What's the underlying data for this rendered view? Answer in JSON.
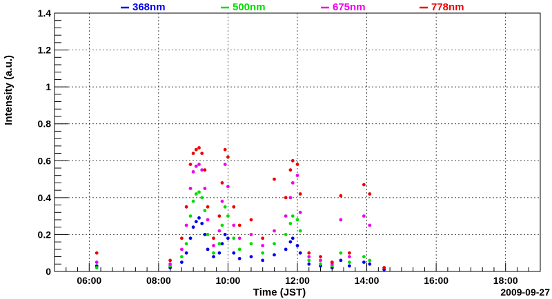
{
  "chart_data": {
    "type": "scatter",
    "title": "",
    "xlabel": "Time (JST)",
    "ylabel": "Intensity (a.u.)",
    "date_label": "2009-09-27",
    "xlim": [
      "05:00",
      "19:00"
    ],
    "ylim": [
      0,
      1.4
    ],
    "x_ticks": [
      "06:00",
      "08:00",
      "10:00",
      "12:00",
      "14:00",
      "16:00",
      "18:00"
    ],
    "y_ticks": [
      "0",
      "0.2",
      "0.4",
      "0.6",
      "0.8",
      "1",
      "1.2",
      "1.4"
    ],
    "grid": true,
    "legend_position": "top",
    "series": [
      {
        "name": "368nm",
        "color": "#0000ee",
        "points": [
          [
            "06:13",
            0.03
          ],
          [
            "08:20",
            0.02
          ],
          [
            "08:40",
            0.05
          ],
          [
            "08:48",
            0.1
          ],
          [
            "08:55",
            0.18
          ],
          [
            "09:00",
            0.24
          ],
          [
            "09:05",
            0.27
          ],
          [
            "09:10",
            0.29
          ],
          [
            "09:15",
            0.26
          ],
          [
            "09:20",
            0.2
          ],
          [
            "09:25",
            0.12
          ],
          [
            "09:35",
            0.08
          ],
          [
            "09:45",
            0.1
          ],
          [
            "09:50",
            0.15
          ],
          [
            "09:55",
            0.2
          ],
          [
            "10:00",
            0.18
          ],
          [
            "10:10",
            0.1
          ],
          [
            "10:20",
            0.07
          ],
          [
            "10:40",
            0.08
          ],
          [
            "11:00",
            0.06
          ],
          [
            "11:20",
            0.09
          ],
          [
            "11:40",
            0.12
          ],
          [
            "11:48",
            0.16
          ],
          [
            "11:52",
            0.18
          ],
          [
            "12:00",
            0.14
          ],
          [
            "12:05",
            0.1
          ],
          [
            "12:20",
            0.04
          ],
          [
            "12:40",
            0.03
          ],
          [
            "13:00",
            0.02
          ],
          [
            "13:15",
            0.06
          ],
          [
            "13:30",
            0.03
          ],
          [
            "13:55",
            0.05
          ],
          [
            "14:05",
            0.04
          ],
          [
            "14:30",
            0.01
          ]
        ]
      },
      {
        "name": "500nm",
        "color": "#00dd00",
        "points": [
          [
            "06:13",
            0.02
          ],
          [
            "08:20",
            0.03
          ],
          [
            "08:40",
            0.08
          ],
          [
            "08:48",
            0.15
          ],
          [
            "08:55",
            0.3
          ],
          [
            "09:00",
            0.38
          ],
          [
            "09:05",
            0.42
          ],
          [
            "09:10",
            0.43
          ],
          [
            "09:15",
            0.4
          ],
          [
            "09:20",
            0.33
          ],
          [
            "09:25",
            0.2
          ],
          [
            "09:35",
            0.1
          ],
          [
            "09:45",
            0.15
          ],
          [
            "09:50",
            0.25
          ],
          [
            "09:55",
            0.35
          ],
          [
            "10:00",
            0.3
          ],
          [
            "10:10",
            0.18
          ],
          [
            "10:20",
            0.12
          ],
          [
            "10:40",
            0.15
          ],
          [
            "11:00",
            0.1
          ],
          [
            "11:20",
            0.15
          ],
          [
            "11:40",
            0.2
          ],
          [
            "11:48",
            0.26
          ],
          [
            "11:52",
            0.3
          ],
          [
            "12:00",
            0.28
          ],
          [
            "12:05",
            0.22
          ],
          [
            "12:20",
            0.06
          ],
          [
            "12:40",
            0.04
          ],
          [
            "13:00",
            0.03
          ],
          [
            "13:15",
            0.1
          ],
          [
            "13:30",
            0.05
          ],
          [
            "13:55",
            0.08
          ],
          [
            "14:05",
            0.06
          ],
          [
            "14:30",
            0.02
          ]
        ]
      },
      {
        "name": "675nm",
        "color": "#ee00ee",
        "points": [
          [
            "06:13",
            0.05
          ],
          [
            "08:20",
            0.04
          ],
          [
            "08:40",
            0.12
          ],
          [
            "08:48",
            0.25
          ],
          [
            "08:55",
            0.45
          ],
          [
            "09:00",
            0.54
          ],
          [
            "09:05",
            0.57
          ],
          [
            "09:10",
            0.58
          ],
          [
            "09:15",
            0.55
          ],
          [
            "09:20",
            0.45
          ],
          [
            "09:25",
            0.28
          ],
          [
            "09:35",
            0.14
          ],
          [
            "09:45",
            0.22
          ],
          [
            "09:50",
            0.38
          ],
          [
            "09:55",
            0.58
          ],
          [
            "10:00",
            0.46
          ],
          [
            "10:10",
            0.25
          ],
          [
            "10:20",
            0.18
          ],
          [
            "10:40",
            0.2
          ],
          [
            "11:00",
            0.14
          ],
          [
            "11:20",
            0.22
          ],
          [
            "11:40",
            0.3
          ],
          [
            "11:48",
            0.4
          ],
          [
            "11:52",
            0.48
          ],
          [
            "12:00",
            0.52
          ],
          [
            "12:05",
            0.32
          ],
          [
            "12:20",
            0.08
          ],
          [
            "12:40",
            0.06
          ],
          [
            "13:00",
            0.04
          ],
          [
            "13:15",
            0.28
          ],
          [
            "13:30",
            0.08
          ],
          [
            "13:55",
            0.3
          ],
          [
            "14:05",
            0.25
          ],
          [
            "14:30",
            0.02
          ]
        ]
      },
      {
        "name": "778nm",
        "color": "#ee0000",
        "points": [
          [
            "06:13",
            0.1
          ],
          [
            "08:20",
            0.06
          ],
          [
            "08:40",
            0.18
          ],
          [
            "08:48",
            0.35
          ],
          [
            "08:55",
            0.58
          ],
          [
            "09:00",
            0.64
          ],
          [
            "09:05",
            0.66
          ],
          [
            "09:10",
            0.67
          ],
          [
            "09:15",
            0.64
          ],
          [
            "09:20",
            0.55
          ],
          [
            "09:25",
            0.35
          ],
          [
            "09:35",
            0.18
          ],
          [
            "09:45",
            0.3
          ],
          [
            "09:50",
            0.48
          ],
          [
            "09:55",
            0.66
          ],
          [
            "10:00",
            0.62
          ],
          [
            "10:10",
            0.35
          ],
          [
            "10:20",
            0.25
          ],
          [
            "10:40",
            0.28
          ],
          [
            "11:00",
            0.18
          ],
          [
            "11:20",
            0.5
          ],
          [
            "11:40",
            0.4
          ],
          [
            "11:48",
            0.55
          ],
          [
            "11:52",
            0.6
          ],
          [
            "12:00",
            0.58
          ],
          [
            "12:05",
            0.42
          ],
          [
            "12:20",
            0.1
          ],
          [
            "12:40",
            0.08
          ],
          [
            "13:00",
            0.05
          ],
          [
            "13:15",
            0.41
          ],
          [
            "13:30",
            0.1
          ],
          [
            "13:55",
            0.47
          ],
          [
            "14:05",
            0.42
          ],
          [
            "14:30",
            0.02
          ]
        ]
      }
    ]
  }
}
